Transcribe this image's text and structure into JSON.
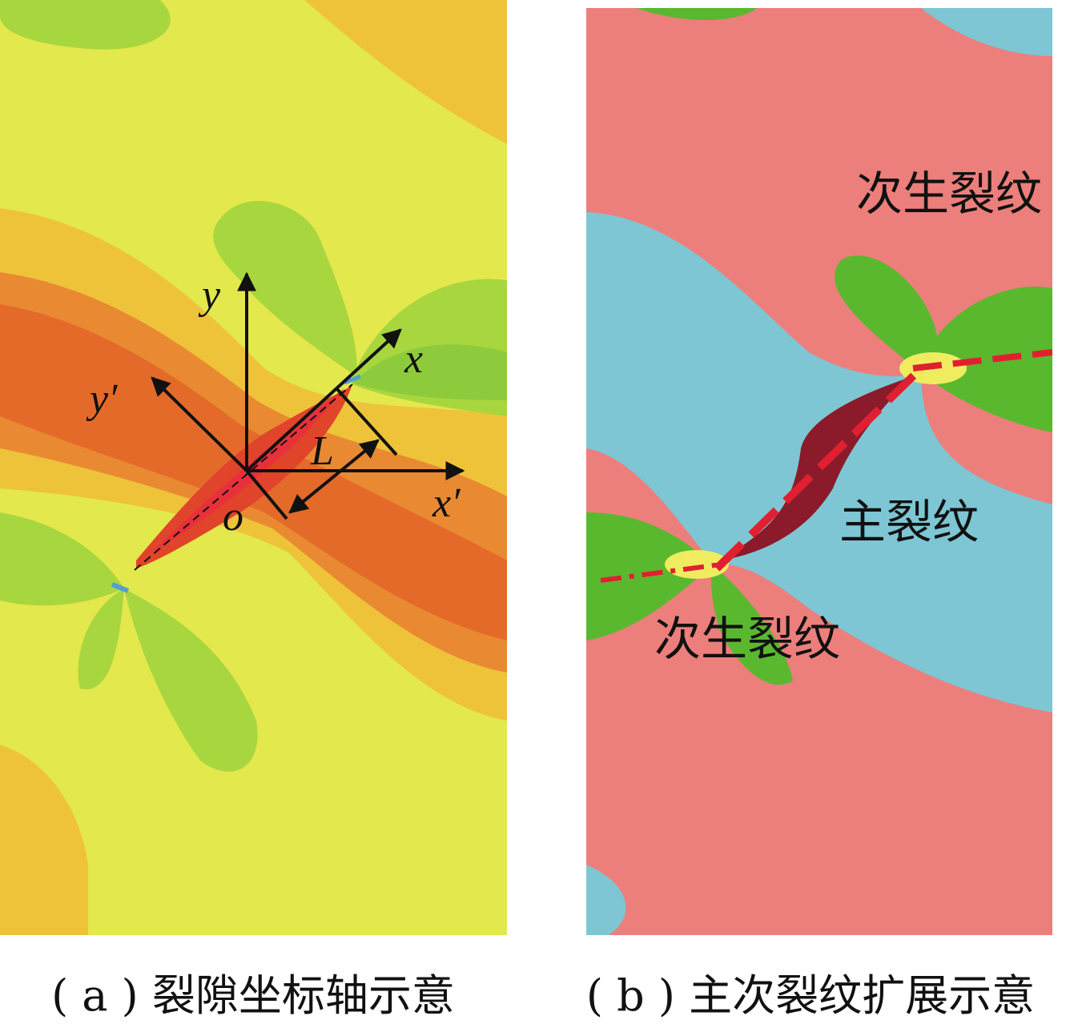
{
  "panel_a": {
    "labels": {
      "y": "y",
      "y_prime": "y′",
      "x": "x",
      "x_prime": "x′",
      "length": "L",
      "origin": "o"
    },
    "caption": "( a ) 裂隙坐标轴示意"
  },
  "panel_b": {
    "labels": [
      "次生裂纹",
      "主裂纹",
      "次生裂纹"
    ],
    "caption": "( b ) 主次裂纹扩展示意"
  }
}
